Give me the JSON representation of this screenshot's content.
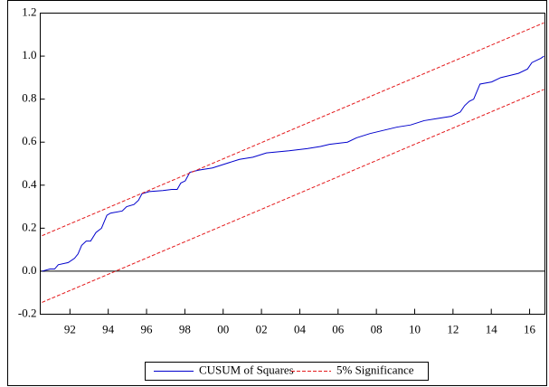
{
  "chart_data": {
    "type": "line",
    "series": [
      {
        "name": "CUSUM of Squares",
        "color": "#0000cc",
        "x": [
          1990.54,
          1990.96,
          1991.2,
          1991.39,
          1991.91,
          1992.24,
          1992.42,
          1992.61,
          1992.85,
          1993.08,
          1993.36,
          1993.65,
          1993.93,
          1994.12,
          1994.73,
          1994.96,
          1995.34,
          1995.58,
          1995.76,
          1996.14,
          1996.85,
          1997.32,
          1997.6,
          1997.79,
          1998.02,
          1998.26,
          1998.73,
          1999.44,
          2000.14,
          2000.85,
          2001.55,
          2002.26,
          2003.44,
          2004.38,
          2005.08,
          2005.55,
          2006.49,
          2006.96,
          2007.67,
          2008.14,
          2008.61,
          2009.08,
          2009.79,
          2010.49,
          2011.2,
          2011.91,
          2012.38,
          2012.61,
          2012.85,
          2013.08,
          2013.41,
          2014.02,
          2014.49,
          2014.96,
          2015.42,
          2015.89,
          2016.12,
          2016.59,
          2016.75
        ],
        "values": [
          0.0,
          0.01,
          0.01,
          0.03,
          0.04,
          0.06,
          0.08,
          0.12,
          0.14,
          0.14,
          0.18,
          0.2,
          0.26,
          0.27,
          0.28,
          0.3,
          0.31,
          0.33,
          0.36,
          0.37,
          0.375,
          0.38,
          0.38,
          0.41,
          0.42,
          0.46,
          0.47,
          0.48,
          0.5,
          0.52,
          0.53,
          0.55,
          0.56,
          0.57,
          0.58,
          0.59,
          0.6,
          0.62,
          0.64,
          0.65,
          0.66,
          0.67,
          0.68,
          0.7,
          0.71,
          0.72,
          0.74,
          0.77,
          0.79,
          0.8,
          0.87,
          0.88,
          0.9,
          0.91,
          0.92,
          0.94,
          0.97,
          0.99,
          1.0
        ]
      },
      {
        "name": "5% Significance",
        "color": "#e41a1c",
        "dashed": true,
        "x": [
          1990.54,
          2016.75
        ],
        "values": [
          0.165,
          1.155
        ],
        "lower": [
          -0.145,
          0.845
        ]
      }
    ],
    "xlim": [
      1990.45,
      2016.8
    ],
    "xticks": [
      {
        "value": 1992,
        "label": "92"
      },
      {
        "value": 1994,
        "label": "94"
      },
      {
        "value": 1996,
        "label": "96"
      },
      {
        "value": 1998,
        "label": "98"
      },
      {
        "value": 2000,
        "label": "00"
      },
      {
        "value": 2002,
        "label": "02"
      },
      {
        "value": 2004,
        "label": "04"
      },
      {
        "value": 2006,
        "label": "06"
      },
      {
        "value": 2008,
        "label": "08"
      },
      {
        "value": 2010,
        "label": "10"
      },
      {
        "value": 2012,
        "label": "12"
      },
      {
        "value": 2014,
        "label": "14"
      },
      {
        "value": 2016,
        "label": "16"
      }
    ],
    "ylim": [
      -0.2,
      1.2
    ],
    "yticks": [
      -0.2,
      {
        "value": 0,
        "label": "0.0"
      },
      0.2,
      0.4,
      0.6,
      0.8,
      {
        "value": 1,
        "label": "1.0"
      },
      {
        "value": 1.2,
        "label": "1.2"
      }
    ],
    "zero_line": true,
    "legend": "bottom"
  }
}
